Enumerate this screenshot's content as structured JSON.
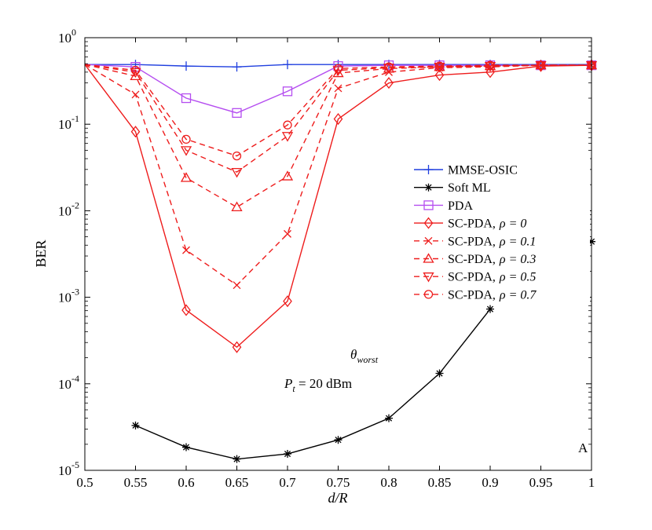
{
  "chart_data": {
    "type": "line",
    "title": "",
    "xlabel": "d/R",
    "ylabel": "BER",
    "yscale": "log",
    "xlim": [
      0.5,
      1
    ],
    "ylim": [
      1e-05,
      1
    ],
    "x_ticks": [
      0.5,
      0.55,
      0.6,
      0.65,
      0.7,
      0.75,
      0.8,
      0.85,
      0.9,
      0.95,
      1
    ],
    "x_tick_labels": [
      "0.5",
      "0.55",
      "0.6",
      "0.65",
      "0.7",
      "0.75",
      "0.8",
      "0.85",
      "0.9",
      "0.95",
      "1"
    ],
    "y_ticks": [
      {
        "value": 1e-05,
        "base": "10",
        "exp": "-5"
      },
      {
        "value": 0.0001,
        "base": "10",
        "exp": "-4"
      },
      {
        "value": 0.001,
        "base": "10",
        "exp": "-3"
      },
      {
        "value": 0.01,
        "base": "10",
        "exp": "-2"
      },
      {
        "value": 0.1,
        "base": "10",
        "exp": "-1"
      },
      {
        "value": 1,
        "base": "10",
        "exp": "0"
      }
    ],
    "grid": false,
    "legend_position": "right",
    "series": [
      {
        "name": "MMSE-OSIC",
        "legend_main": "MMSE-OSIC",
        "rho": "",
        "color": "#1f3fdf",
        "dash": "solid",
        "marker": "plus",
        "x": [
          0.5,
          0.55,
          0.6,
          0.65,
          0.7,
          0.75,
          0.8,
          0.85,
          0.9,
          0.95,
          1
        ],
        "y": [
          0.49,
          0.49,
          0.47,
          0.46,
          0.49,
          0.49,
          0.49,
          0.49,
          0.49,
          0.49,
          0.49
        ]
      },
      {
        "name": "Soft ML",
        "legend_main": "Soft ML",
        "rho": "",
        "color": "#000000",
        "dash": "solid",
        "marker": "asterisk",
        "x": [
          0.55,
          0.6,
          0.65,
          0.7,
          0.75,
          0.8,
          0.85,
          0.9
        ],
        "y": [
          3.3e-05,
          1.85e-05,
          1.35e-05,
          1.55e-05,
          2.25e-05,
          4e-05,
          0.000132,
          0.00073
        ],
        "extra_point": {
          "x": 1,
          "y": 0.0044
        }
      },
      {
        "name": "PDA",
        "legend_main": "PDA",
        "rho": "",
        "color": "#b54ef0",
        "dash": "solid",
        "marker": "square",
        "x": [
          0.5,
          0.55,
          0.6,
          0.65,
          0.7,
          0.75,
          0.8,
          0.85,
          0.9,
          0.95,
          1
        ],
        "y": [
          0.49,
          0.46,
          0.2,
          0.135,
          0.24,
          0.47,
          0.48,
          0.48,
          0.48,
          0.48,
          0.48
        ]
      },
      {
        "name": "SC-PDA, ρ = 0",
        "legend_main": "SC-PDA,",
        "rho": "ρ = 0",
        "color": "#ee1c1c",
        "dash": "solid",
        "marker": "diamond",
        "x": [
          0.5,
          0.55,
          0.6,
          0.65,
          0.7,
          0.75,
          0.8,
          0.85,
          0.9,
          0.95,
          1
        ],
        "y": [
          0.49,
          0.082,
          0.00071,
          0.000265,
          0.0009,
          0.115,
          0.3,
          0.37,
          0.4,
          0.47,
          0.48
        ]
      },
      {
        "name": "SC-PDA, ρ = 0.1",
        "legend_main": "SC-PDA,",
        "rho": "ρ = 0.1",
        "color": "#ee1c1c",
        "dash": "dashed",
        "marker": "x",
        "x": [
          0.5,
          0.55,
          0.6,
          0.65,
          0.7,
          0.75,
          0.8,
          0.85,
          0.9,
          0.95,
          1
        ],
        "y": [
          0.49,
          0.22,
          0.0035,
          0.00138,
          0.0054,
          0.26,
          0.4,
          0.45,
          0.46,
          0.48,
          0.48
        ]
      },
      {
        "name": "SC-PDA, ρ = 0.3",
        "legend_main": "SC-PDA,",
        "rho": "ρ = 0.3",
        "color": "#ee1c1c",
        "dash": "dashed",
        "marker": "triangle-up",
        "x": [
          0.5,
          0.55,
          0.6,
          0.65,
          0.7,
          0.75,
          0.8,
          0.85,
          0.9,
          0.95,
          1
        ],
        "y": [
          0.49,
          0.36,
          0.024,
          0.011,
          0.025,
          0.39,
          0.44,
          0.46,
          0.47,
          0.48,
          0.48
        ]
      },
      {
        "name": "SC-PDA, ρ = 0.5",
        "legend_main": "SC-PDA,",
        "rho": "ρ = 0.5",
        "color": "#ee1c1c",
        "dash": "dashed",
        "marker": "triangle-down",
        "x": [
          0.5,
          0.55,
          0.6,
          0.65,
          0.7,
          0.75,
          0.8,
          0.85,
          0.9,
          0.95,
          1
        ],
        "y": [
          0.49,
          0.4,
          0.05,
          0.028,
          0.073,
          0.42,
          0.45,
          0.46,
          0.47,
          0.48,
          0.48
        ]
      },
      {
        "name": "SC-PDA, ρ = 0.7",
        "legend_main": "SC-PDA,",
        "rho": "ρ = 0.7",
        "color": "#ee1c1c",
        "dash": "dashed",
        "marker": "circle",
        "x": [
          0.5,
          0.55,
          0.6,
          0.65,
          0.7,
          0.75,
          0.8,
          0.85,
          0.9,
          0.95,
          1
        ],
        "y": [
          0.49,
          0.42,
          0.067,
          0.043,
          0.098,
          0.44,
          0.46,
          0.47,
          0.48,
          0.48,
          0.48
        ]
      }
    ],
    "annotations": {
      "theta_base": "θ",
      "theta_sub": "worst",
      "power_var": "P",
      "power_sub": "t",
      "power_value": " = 20 dBm",
      "corner_label": "A"
    }
  }
}
